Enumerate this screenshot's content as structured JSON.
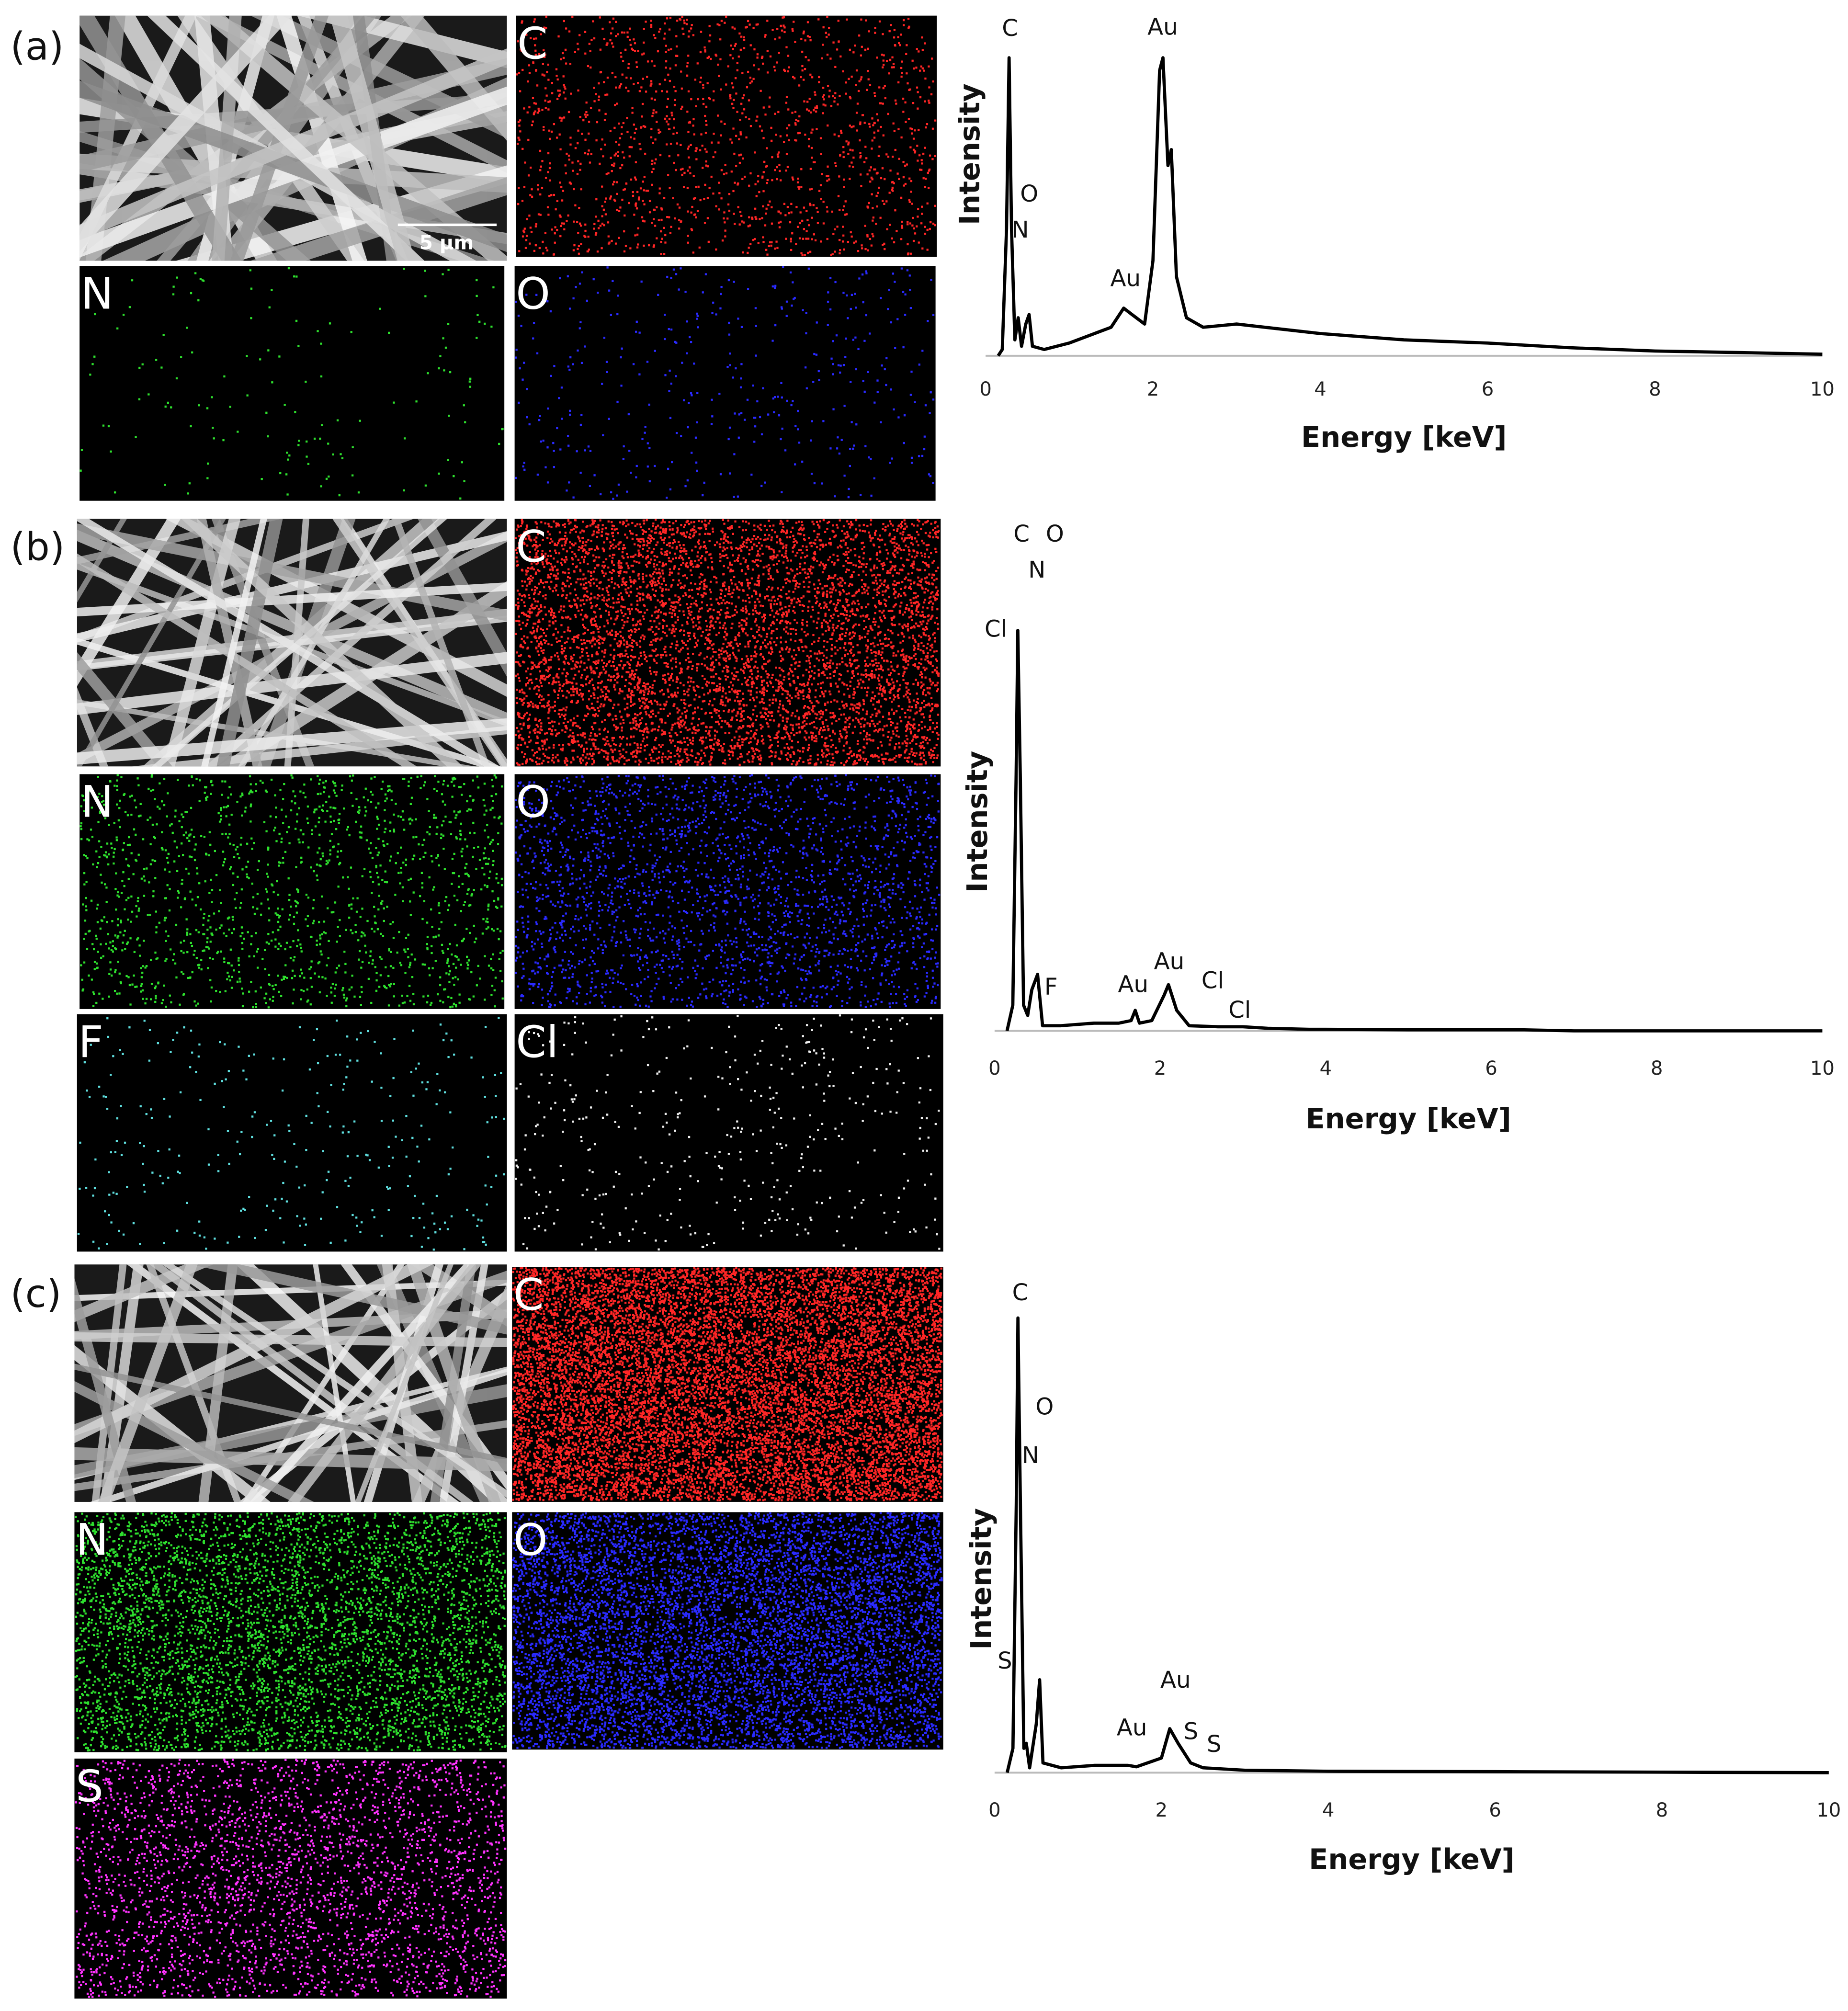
{
  "panels": [
    {
      "label": "(a)",
      "scale_bar": "5 μm",
      "maps": [
        {
          "element": "C",
          "color": "#ff2626"
        },
        {
          "element": "N",
          "color": "#2ee02e"
        },
        {
          "element": "O",
          "color": "#2a2aff"
        }
      ]
    },
    {
      "label": "(b)",
      "maps": [
        {
          "element": "C",
          "color": "#ff2626"
        },
        {
          "element": "N",
          "color": "#2ee02e"
        },
        {
          "element": "O",
          "color": "#2a2aff"
        },
        {
          "element": "F",
          "color": "#5fe0e0"
        },
        {
          "element": "Cl",
          "color": "#f0f0f0"
        }
      ]
    },
    {
      "label": "(c)",
      "maps": [
        {
          "element": "C",
          "color": "#ff2626"
        },
        {
          "element": "N",
          "color": "#2ee02e"
        },
        {
          "element": "O",
          "color": "#2a2aff"
        },
        {
          "element": "S",
          "color": "#ff33ff"
        }
      ]
    }
  ],
  "chart_data": [
    {
      "type": "line",
      "x_label": "Energy [keV]",
      "y_label": "Intensity",
      "xlim": [
        0,
        10
      ],
      "xticks": [
        0,
        2,
        4,
        6,
        8,
        10
      ],
      "ylim": [
        0,
        100
      ],
      "x": [
        0.15,
        0.2,
        0.25,
        0.28,
        0.31,
        0.35,
        0.39,
        0.43,
        0.48,
        0.52,
        0.56,
        0.7,
        1.0,
        1.3,
        1.5,
        1.65,
        1.75,
        1.9,
        2.0,
        2.08,
        2.12,
        2.18,
        2.22,
        2.28,
        2.4,
        2.6,
        3.0,
        4.0,
        5.0,
        6.0,
        7.0,
        8.0,
        9.0,
        10.0
      ],
      "series": [
        {
          "color": "#000000",
          "values": [
            0,
            2,
            40,
            94,
            40,
            5,
            12,
            3,
            10,
            13,
            3,
            2,
            4,
            7,
            9,
            15,
            13,
            10,
            30,
            90,
            94,
            60,
            65,
            25,
            12,
            9,
            10,
            7,
            5,
            4,
            2.5,
            1.5,
            1,
            0.5
          ]
        }
      ],
      "annotations": [
        "C",
        "O",
        "N",
        "Au",
        "Au"
      ]
    },
    {
      "type": "line",
      "x_label": "Energy [keV]",
      "y_label": "Intensity",
      "xlim": [
        0,
        10
      ],
      "xticks": [
        0,
        2,
        4,
        6,
        8,
        10
      ],
      "ylim": [
        0,
        100
      ],
      "x": [
        0.15,
        0.22,
        0.26,
        0.28,
        0.31,
        0.35,
        0.4,
        0.45,
        0.52,
        0.58,
        0.8,
        1.2,
        1.5,
        1.65,
        1.7,
        1.75,
        1.9,
        2.05,
        2.1,
        2.2,
        2.35,
        2.7,
        3.0,
        3.3,
        3.8,
        4.0,
        5.0,
        6.0,
        6.4,
        7.0,
        10.0
      ],
      "series": [
        {
          "color": "#000000",
          "values": [
            0,
            5,
            50,
            78,
            50,
            5,
            3,
            8,
            11,
            1,
            1,
            1.5,
            1.5,
            2,
            4,
            1.5,
            2,
            7,
            9,
            4,
            1,
            0.8,
            0.8,
            0.5,
            0.3,
            0.3,
            0.2,
            0.2,
            0.2,
            0,
            0
          ]
        }
      ],
      "annotations": [
        "C",
        "O",
        "N",
        "Cl",
        "F",
        "Au",
        "Au",
        "Cl",
        "Cl"
      ]
    },
    {
      "type": "line",
      "x_label": "Energy [keV]",
      "y_label": "Intensity",
      "xlim": [
        0,
        10
      ],
      "xticks": [
        0,
        2,
        4,
        6,
        8,
        10
      ],
      "ylim": [
        0,
        100
      ],
      "x": [
        0.15,
        0.22,
        0.26,
        0.28,
        0.31,
        0.35,
        0.38,
        0.42,
        0.5,
        0.54,
        0.58,
        0.8,
        1.2,
        1.6,
        1.7,
        2.0,
        2.1,
        2.2,
        2.35,
        2.5,
        3.0,
        4.0,
        6.0,
        8.0,
        10.0
      ],
      "series": [
        {
          "color": "#000000",
          "values": [
            0,
            5,
            55,
            93,
            55,
            5,
            6,
            1,
            10,
            19,
            2,
            1,
            1.5,
            1.5,
            1.2,
            3,
            9,
            6,
            2,
            1,
            0.5,
            0.3,
            0.2,
            0.1,
            0
          ]
        }
      ],
      "annotations": [
        "C",
        "O",
        "N",
        "S",
        "Au",
        "Au",
        "S",
        "S"
      ]
    }
  ]
}
